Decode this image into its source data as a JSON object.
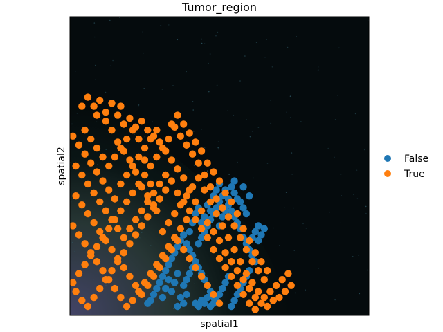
{
  "chart_data": {
    "type": "scatter",
    "title": "Tumor_region",
    "xlabel": "spatial1",
    "ylabel": "spatial2",
    "xlim": [
      0,
      100
    ],
    "ylim": [
      0,
      100
    ],
    "background": "tissue-image",
    "legend": {
      "placement": "right",
      "entries": [
        "False",
        "True"
      ]
    },
    "series": [
      {
        "name": "False",
        "color": "#1f77b4",
        "points": [
          [
            26,
            4
          ],
          [
            27,
            5
          ],
          [
            28,
            7
          ],
          [
            29,
            9
          ],
          [
            30,
            11
          ],
          [
            31,
            13
          ],
          [
            32,
            15
          ],
          [
            33,
            17
          ],
          [
            34,
            19
          ],
          [
            35,
            21
          ],
          [
            36,
            23
          ],
          [
            37,
            25
          ],
          [
            38,
            27
          ],
          [
            39,
            24
          ],
          [
            40,
            22
          ],
          [
            41,
            20
          ],
          [
            42,
            18
          ],
          [
            43,
            16
          ],
          [
            44,
            14
          ],
          [
            45,
            12
          ],
          [
            46,
            10
          ],
          [
            47,
            8
          ],
          [
            48,
            6
          ],
          [
            43,
            24
          ],
          [
            44,
            26
          ],
          [
            45,
            28
          ],
          [
            46,
            30
          ],
          [
            47,
            32
          ],
          [
            48,
            34
          ],
          [
            49,
            36
          ],
          [
            50,
            38
          ],
          [
            51,
            40
          ],
          [
            52,
            42
          ],
          [
            53,
            37
          ],
          [
            54,
            35
          ],
          [
            55,
            33
          ],
          [
            56,
            31
          ],
          [
            57,
            29
          ],
          [
            58,
            26
          ],
          [
            59,
            24
          ],
          [
            60,
            22
          ],
          [
            61,
            20
          ],
          [
            62,
            18
          ],
          [
            61,
            26
          ],
          [
            62,
            28
          ],
          [
            63,
            30
          ],
          [
            63,
            25
          ],
          [
            64,
            27
          ],
          [
            65,
            29
          ],
          [
            57,
            38
          ],
          [
            58,
            36
          ],
          [
            59,
            34
          ],
          [
            55,
            41
          ],
          [
            56,
            39
          ],
          [
            60,
            40
          ],
          [
            58,
            43
          ],
          [
            40,
            28
          ],
          [
            41,
            31
          ],
          [
            42,
            34
          ],
          [
            43,
            36
          ],
          [
            44,
            31
          ],
          [
            45,
            33
          ],
          [
            46,
            37
          ],
          [
            47,
            35
          ],
          [
            48,
            40
          ],
          [
            49,
            42
          ],
          [
            50,
            44
          ],
          [
            50,
            30
          ],
          [
            51,
            33
          ],
          [
            52,
            35
          ],
          [
            53,
            39
          ],
          [
            54,
            43
          ],
          [
            55,
            45
          ],
          [
            38,
            10
          ],
          [
            39,
            12
          ],
          [
            40,
            14
          ],
          [
            41,
            16
          ],
          [
            42,
            4
          ],
          [
            43,
            3
          ],
          [
            44,
            5
          ],
          [
            45,
            4
          ],
          [
            46,
            6
          ],
          [
            47,
            3
          ],
          [
            48,
            4
          ],
          [
            49,
            5
          ],
          [
            50,
            7
          ],
          [
            51,
            9
          ],
          [
            52,
            11
          ],
          [
            53,
            13
          ],
          [
            54,
            3
          ],
          [
            55,
            5
          ],
          [
            56,
            7
          ],
          [
            57,
            9
          ],
          [
            58,
            11
          ],
          [
            59,
            13
          ],
          [
            60,
            15
          ],
          [
            36,
            3
          ],
          [
            37,
            6
          ],
          [
            38,
            4
          ],
          [
            39,
            7
          ],
          [
            34,
            8
          ],
          [
            35,
            11
          ],
          [
            36,
            14
          ],
          [
            31,
            6
          ],
          [
            32,
            9
          ],
          [
            33,
            12
          ]
        ]
      },
      {
        "name": "True",
        "color": "#ff7f0e",
        "points": [
          [
            4,
            70
          ],
          [
            6,
            73
          ],
          [
            8,
            70
          ],
          [
            10,
            72
          ],
          [
            12,
            68
          ],
          [
            14,
            71
          ],
          [
            16,
            67
          ],
          [
            17,
            70
          ],
          [
            9,
            67
          ],
          [
            12,
            65
          ],
          [
            18,
            64
          ],
          [
            20,
            66
          ],
          [
            22,
            63
          ],
          [
            24,
            65
          ],
          [
            26,
            62
          ],
          [
            28,
            60
          ],
          [
            30,
            58
          ],
          [
            32,
            55
          ],
          [
            34,
            52
          ],
          [
            36,
            49
          ],
          [
            38,
            46
          ],
          [
            40,
            42
          ],
          [
            42,
            38
          ],
          [
            44,
            35
          ],
          [
            46,
            31
          ],
          [
            48,
            28
          ],
          [
            50,
            25
          ],
          [
            52,
            21
          ],
          [
            54,
            18
          ],
          [
            56,
            15
          ],
          [
            58,
            12
          ],
          [
            60,
            9
          ],
          [
            62,
            6
          ],
          [
            64,
            4
          ],
          [
            66,
            3
          ],
          [
            68,
            5
          ],
          [
            70,
            6
          ],
          [
            72,
            8
          ],
          [
            74,
            10
          ],
          [
            65,
            12
          ],
          [
            63,
            15
          ],
          [
            61,
            18
          ],
          [
            59,
            22
          ],
          [
            57,
            26
          ],
          [
            55,
            30
          ],
          [
            53,
            33
          ],
          [
            51,
            36
          ],
          [
            49,
            39
          ],
          [
            47,
            43
          ],
          [
            45,
            47
          ],
          [
            43,
            51
          ],
          [
            41,
            54
          ],
          [
            39,
            57
          ],
          [
            37,
            60
          ],
          [
            35,
            63
          ],
          [
            33,
            59
          ],
          [
            31,
            56
          ],
          [
            29,
            53
          ],
          [
            27,
            50
          ],
          [
            25,
            47
          ],
          [
            23,
            44
          ],
          [
            21,
            41
          ],
          [
            19,
            38
          ],
          [
            17,
            35
          ],
          [
            15,
            32
          ],
          [
            13,
            29
          ],
          [
            11,
            26
          ],
          [
            9,
            23
          ],
          [
            7,
            20
          ],
          [
            5,
            17
          ],
          [
            3,
            14
          ],
          [
            1,
            11
          ],
          [
            2,
            8
          ],
          [
            4,
            5
          ],
          [
            6,
            3
          ],
          [
            8,
            6
          ],
          [
            10,
            9
          ],
          [
            12,
            12
          ],
          [
            14,
            15
          ],
          [
            16,
            18
          ],
          [
            18,
            21
          ],
          [
            20,
            24
          ],
          [
            22,
            27
          ],
          [
            24,
            30
          ],
          [
            26,
            33
          ],
          [
            28,
            36
          ],
          [
            30,
            39
          ],
          [
            32,
            42
          ],
          [
            34,
            45
          ],
          [
            36,
            41
          ],
          [
            38,
            38
          ],
          [
            40,
            35
          ],
          [
            42,
            32
          ],
          [
            44,
            29
          ],
          [
            46,
            26
          ],
          [
            48,
            22
          ],
          [
            50,
            19
          ],
          [
            52,
            16
          ],
          [
            54,
            13
          ],
          [
            56,
            10
          ],
          [
            58,
            7
          ],
          [
            60,
            4
          ],
          [
            62,
            2
          ],
          [
            1,
            60
          ],
          [
            3,
            57
          ],
          [
            5,
            54
          ],
          [
            7,
            51
          ],
          [
            9,
            48
          ],
          [
            11,
            45
          ],
          [
            13,
            42
          ],
          [
            15,
            39
          ],
          [
            17,
            44
          ],
          [
            19,
            47
          ],
          [
            21,
            50
          ],
          [
            23,
            53
          ],
          [
            25,
            56
          ],
          [
            27,
            59
          ],
          [
            29,
            62
          ],
          [
            2,
            40
          ],
          [
            4,
            37
          ],
          [
            6,
            34
          ],
          [
            8,
            31
          ],
          [
            10,
            28
          ],
          [
            12,
            25
          ],
          [
            14,
            22
          ],
          [
            16,
            19
          ],
          [
            18,
            16
          ],
          [
            20,
            13
          ],
          [
            22,
            10
          ],
          [
            24,
            7
          ],
          [
            26,
            10
          ],
          [
            28,
            13
          ],
          [
            30,
            16
          ],
          [
            32,
            19
          ],
          [
            34,
            22
          ],
          [
            36,
            25
          ],
          [
            38,
            22
          ],
          [
            40,
            19
          ],
          [
            42,
            16
          ],
          [
            44,
            13
          ],
          [
            46,
            10
          ],
          [
            48,
            7
          ],
          [
            50,
            4
          ],
          [
            1,
            30
          ],
          [
            3,
            27
          ],
          [
            5,
            24
          ],
          [
            7,
            21
          ],
          [
            9,
            18
          ],
          [
            11,
            15
          ],
          [
            13,
            12
          ],
          [
            15,
            9
          ],
          [
            17,
            6
          ],
          [
            19,
            3
          ],
          [
            21,
            5
          ],
          [
            23,
            8
          ],
          [
            25,
            11
          ],
          [
            27,
            14
          ],
          [
            29,
            17
          ],
          [
            31,
            20
          ],
          [
            33,
            23
          ],
          [
            35,
            26
          ],
          [
            37,
            29
          ],
          [
            39,
            32
          ],
          [
            2,
            50
          ],
          [
            4,
            47
          ],
          [
            6,
            44
          ],
          [
            8,
            41
          ],
          [
            10,
            38
          ],
          [
            12,
            35
          ],
          [
            14,
            32
          ],
          [
            16,
            29
          ],
          [
            18,
            26
          ],
          [
            20,
            29
          ],
          [
            22,
            32
          ],
          [
            24,
            35
          ],
          [
            26,
            38
          ],
          [
            28,
            41
          ],
          [
            30,
            44
          ],
          [
            32,
            47
          ],
          [
            5,
            62
          ],
          [
            7,
            59
          ],
          [
            9,
            56
          ],
          [
            11,
            53
          ],
          [
            13,
            50
          ],
          [
            15,
            53
          ],
          [
            17,
            56
          ],
          [
            19,
            59
          ],
          [
            21,
            62
          ],
          [
            23,
            59
          ],
          [
            25,
            52
          ],
          [
            27,
            44
          ],
          [
            29,
            35
          ],
          [
            31,
            28
          ],
          [
            33,
            31
          ],
          [
            35,
            34
          ],
          [
            37,
            37
          ],
          [
            39,
            40
          ],
          [
            41,
            43
          ],
          [
            43,
            46
          ],
          [
            45,
            42
          ],
          [
            47,
            38
          ],
          [
            49,
            34
          ],
          [
            51,
            30
          ],
          [
            53,
            26
          ],
          [
            55,
            22
          ],
          [
            57,
            18
          ],
          [
            59,
            14
          ],
          [
            61,
            11
          ],
          [
            63,
            8
          ],
          [
            65,
            6
          ],
          [
            67,
            8
          ],
          [
            69,
            10
          ],
          [
            71,
            12
          ],
          [
            73,
            14
          ],
          [
            66,
            15
          ],
          [
            64,
            18
          ],
          [
            62,
            21
          ],
          [
            60,
            25
          ],
          [
            58,
            29
          ],
          [
            56,
            34
          ],
          [
            54,
            38
          ],
          [
            52,
            41
          ],
          [
            50,
            45
          ],
          [
            48,
            48
          ],
          [
            46,
            51
          ],
          [
            44,
            55
          ],
          [
            42,
            58
          ],
          [
            40,
            61
          ],
          [
            38,
            64
          ],
          [
            36,
            67
          ],
          [
            34,
            64
          ],
          [
            14,
            62
          ],
          [
            16,
            58
          ],
          [
            18,
            55
          ],
          [
            20,
            52
          ],
          [
            22,
            48
          ],
          [
            24,
            43
          ],
          [
            26,
            40
          ],
          [
            28,
            37
          ]
        ]
      }
    ]
  }
}
